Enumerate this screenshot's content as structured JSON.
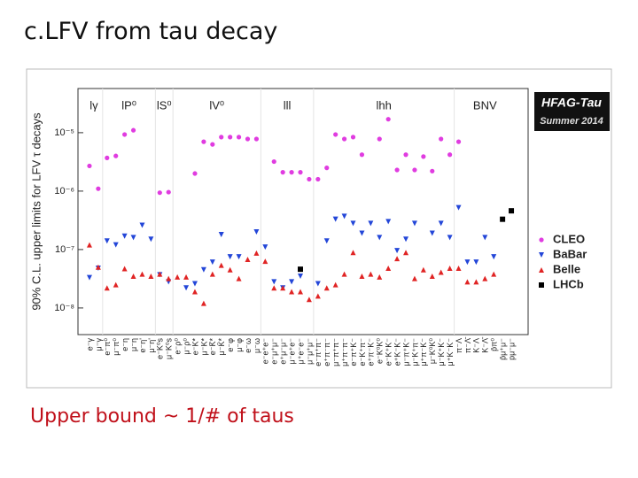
{
  "slide": {
    "title": "c.LFV from tau decay",
    "caption": "Upper bound ~ 1/# of taus"
  },
  "chart_data": {
    "type": "scatter",
    "y_label": "90% C.L. upper limits for LFV τ decays",
    "badge": [
      "HFAG-Tau",
      "Summer 2014"
    ],
    "section_labels": [
      "lγ",
      "lP⁰",
      "lS⁰",
      "lV⁰",
      "lll",
      "lhh",
      "BNV"
    ],
    "categories": [
      "e⁻γ",
      "μ⁻γ",
      "e⁻π⁰",
      "μ⁻π⁰",
      "e⁻η",
      "μ⁻η",
      "e⁻η'",
      "μ⁻η'",
      "e⁻K⁰s",
      "μ⁻K⁰s",
      "e⁻ρ⁰",
      "μ⁻ρ⁰",
      "e⁻K*",
      "μ⁻K*",
      "e⁻K̄*",
      "μ⁻K̄*",
      "e⁻φ",
      "μ⁻φ",
      "e⁻ω",
      "μ⁻ω",
      "e⁻e⁺e⁻",
      "e⁻μ⁺μ⁻",
      "e⁺μ⁻μ⁻",
      "μ⁻e⁺e⁻",
      "μ⁺e⁻e⁻",
      "μ⁻μ⁺μ⁻",
      "e⁻π⁺π⁻",
      "e⁺π⁻π⁻",
      "μ⁻π⁺π⁻",
      "μ⁺π⁻π⁻",
      "e⁻π⁺K⁻",
      "e⁻K⁺π⁻",
      "e⁺π⁻K⁻",
      "e⁻K⁰K⁰",
      "e⁻K⁺K⁻",
      "e⁺K⁻K⁻",
      "μ⁻π⁺K⁻",
      "μ⁻K⁺π⁻",
      "μ⁺π⁻K⁻",
      "μ⁻K⁰K⁰",
      "μ⁻K⁺K⁻",
      "μ⁺K⁻K⁻",
      "π⁻Λ",
      "π⁻Λ̄",
      "K⁻Λ",
      "K⁻Λ̄",
      "p̄π⁰",
      "p̄μ⁺μ⁻",
      "pμ⁻μ⁻"
    ],
    "series": [
      {
        "name": "CLEO",
        "color": "#e03ce0",
        "marker": "circle",
        "values": [
          2.7e-06,
          1.1e-06,
          3.7e-06,
          4e-06,
          9.3e-06,
          1.1e-05,
          null,
          null,
          9.4e-07,
          9.6e-07,
          null,
          null,
          2e-06,
          7e-06,
          6.3e-06,
          8.4e-06,
          8.4e-06,
          8.4e-06,
          7.8e-06,
          7.8e-06,
          null,
          3.2e-06,
          2.1e-06,
          2.1e-06,
          2.1e-06,
          1.6e-06,
          1.6e-06,
          2.5e-06,
          9.3e-06,
          7.8e-06,
          8.4e-06,
          4.2e-06,
          null,
          7.8e-06,
          1.7e-05,
          2.3e-06,
          4.2e-06,
          2.3e-06,
          3.9e-06,
          2.2e-06,
          7.8e-06,
          4.2e-06,
          7e-06,
          null,
          null,
          null,
          null,
          null,
          null
        ]
      },
      {
        "name": "BaBar",
        "color": "#2346d8",
        "marker": "triangle-down",
        "values": [
          3.3e-08,
          4.8e-08,
          1.4e-07,
          1.2e-07,
          1.7e-07,
          1.6e-07,
          2.6e-07,
          1.5e-07,
          3.7e-08,
          2.8e-08,
          null,
          2.2e-08,
          2.6e-08,
          4.5e-08,
          6.1e-08,
          1.8e-07,
          7.5e-08,
          7.5e-08,
          null,
          2e-07,
          1.1e-07,
          2.8e-08,
          2.2e-08,
          2.8e-08,
          3.5e-08,
          null,
          2.6e-08,
          1.4e-07,
          3.3e-07,
          3.7e-07,
          2.8e-07,
          1.9e-07,
          2.8e-07,
          1.6e-07,
          3e-07,
          9.6e-08,
          1.5e-07,
          2.8e-07,
          null,
          1.9e-07,
          2.8e-07,
          1.6e-07,
          5.2e-07,
          6.1e-08,
          6.1e-08,
          1.6e-07,
          7.5e-08,
          null,
          null
        ]
      },
      {
        "name": "Belle",
        "color": "#e02424",
        "marker": "triangle-up",
        "values": [
          1.2e-07,
          5e-08,
          2.2e-08,
          2.5e-08,
          4.7e-08,
          3.5e-08,
          3.8e-08,
          3.5e-08,
          3.8e-08,
          3.2e-08,
          3.4e-08,
          3.4e-08,
          1.9e-08,
          1.2e-08,
          3.8e-08,
          5.4e-08,
          4.5e-08,
          3.2e-08,
          6.8e-08,
          8.7e-08,
          6.3e-08,
          2.2e-08,
          2.2e-08,
          1.9e-08,
          1.9e-08,
          1.4e-08,
          1.6e-08,
          2.2e-08,
          2.5e-08,
          3.8e-08,
          8.9e-08,
          3.5e-08,
          3.8e-08,
          3.4e-08,
          4.8e-08,
          7e-08,
          8.9e-08,
          3.2e-08,
          4.5e-08,
          3.5e-08,
          4.1e-08,
          4.8e-08,
          4.8e-08,
          2.8e-08,
          2.8e-08,
          3.2e-08,
          3.8e-08,
          null,
          null
        ]
      },
      {
        "name": "LHCb",
        "color": "#000000",
        "marker": "square",
        "values": [
          null,
          null,
          null,
          null,
          null,
          null,
          null,
          null,
          null,
          null,
          null,
          null,
          null,
          null,
          null,
          null,
          null,
          null,
          null,
          null,
          null,
          null,
          null,
          null,
          4.6e-08,
          null,
          null,
          null,
          null,
          null,
          null,
          null,
          null,
          null,
          null,
          null,
          null,
          null,
          null,
          null,
          null,
          null,
          null,
          null,
          null,
          null,
          null,
          3.3e-07,
          4.6e-07
        ]
      }
    ],
    "log_y": true,
    "ylim": [
      3.5e-09,
      5.7e-05
    ],
    "yticks": [
      {
        "value": 1e-08,
        "label": "10⁻⁸"
      },
      {
        "value": 1e-07,
        "label": "10⁻⁷"
      },
      {
        "value": 1e-06,
        "label": "10⁻⁶"
      },
      {
        "value": 1e-05,
        "label": "10⁻⁵"
      }
    ],
    "grid": false,
    "legend": "right"
  }
}
